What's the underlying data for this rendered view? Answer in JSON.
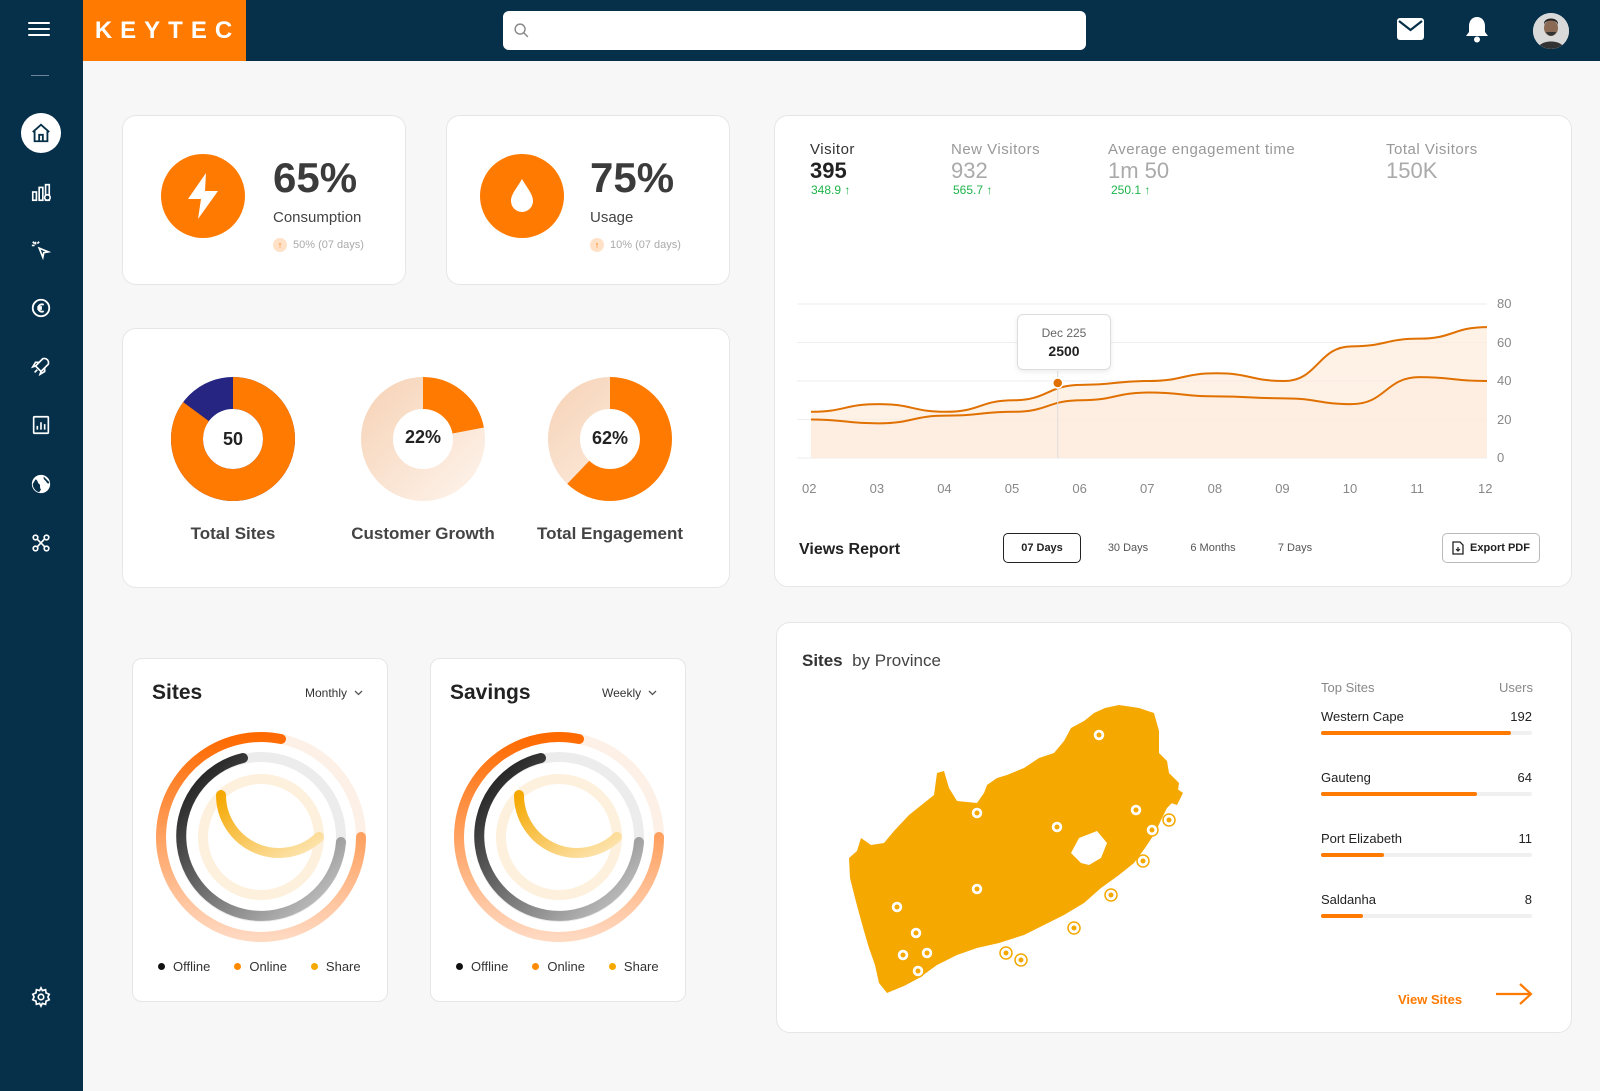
{
  "header": {
    "brand": "KEYTEC",
    "search_placeholder": ""
  },
  "sidebar": {
    "items": [
      "home-icon",
      "analytics-icon",
      "cursor-icon",
      "euro-icon",
      "rocket-icon",
      "report-icon",
      "globe-icon",
      "network-icon"
    ],
    "bottom": "gear-icon"
  },
  "stats": [
    {
      "value": "65%",
      "label": "Consumption",
      "sub": "50% (07 days)",
      "icon": "lightning-icon"
    },
    {
      "value": "75%",
      "label": "Usage",
      "sub": "10% (07 days)",
      "icon": "drop-icon"
    }
  ],
  "donuts": [
    {
      "center": "50",
      "label": "Total Sites",
      "fraction": 0.85
    },
    {
      "center": "22%",
      "label": "Customer Growth",
      "fraction": 0.22
    },
    {
      "center": "62%",
      "label": "Total Engagement",
      "fraction": 0.62
    }
  ],
  "visitors": {
    "kpis": [
      {
        "label": "Visitor",
        "value": "395",
        "delta": "348.9 ↑"
      },
      {
        "label": "New Visitors",
        "value": "932",
        "delta": "565.7 ↑"
      },
      {
        "label": "Average engagement time",
        "value": "1m 50",
        "delta": "250.1 ↑"
      },
      {
        "label": "Total Visitors",
        "value": "150K",
        "delta": ""
      }
    ],
    "tooltip": {
      "title": "Dec 225",
      "value": "2500"
    },
    "title": "Views Report",
    "tabs": [
      "07 Days",
      "30 Days",
      "6 Months",
      "7 Days"
    ],
    "active_tab": "07 Days",
    "export_label": "Export PDF"
  },
  "chart_data": {
    "type": "line",
    "x": [
      "02",
      "03",
      "04",
      "05",
      "06",
      "07",
      "08",
      "09",
      "10",
      "11",
      "12"
    ],
    "y_ticks": [
      "80",
      "60",
      "40",
      "20",
      "0"
    ],
    "ylim": [
      0,
      80
    ],
    "series": [
      {
        "values": [
          24,
          28,
          24,
          30,
          38,
          40,
          44,
          40,
          58,
          62,
          68
        ]
      },
      {
        "values": [
          20,
          18,
          22,
          24,
          30,
          34,
          32,
          31,
          28,
          42,
          40
        ]
      }
    ],
    "color": "#e07000"
  },
  "sites_panel": {
    "title": "Sites",
    "period": "Monthly",
    "legend": [
      "Offline",
      "Online",
      "Share"
    ]
  },
  "savings_panel": {
    "title": "Savings",
    "period": "Weekly",
    "legend": [
      "Offline",
      "Online",
      "Share"
    ]
  },
  "province": {
    "title_bold": "Sites",
    "title_rest": "by Province",
    "head_sites": "Top Sites",
    "head_users": "Users",
    "sites": [
      {
        "name": "Western Cape",
        "users": "192",
        "fraction": 0.9
      },
      {
        "name": "Gauteng",
        "users": "64",
        "fraction": 0.74
      },
      {
        "name": "Port Elizabeth",
        "users": "11",
        "fraction": 0.3
      },
      {
        "name": "Saldanha",
        "users": "8",
        "fraction": 0.2
      }
    ],
    "view_label": "View Sites"
  }
}
